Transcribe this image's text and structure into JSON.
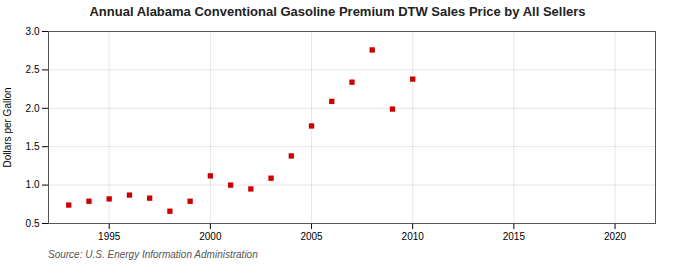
{
  "chart_data": {
    "type": "scatter",
    "title": "Annual Alabama Conventional Gasoline Premium DTW Sales Price by All Sellers",
    "ylabel": "Dollars per Gallon",
    "annotation": "Source: U.S. Energy Information Administration",
    "x": [
      1993,
      1994,
      1995,
      1996,
      1997,
      1998,
      1999,
      2000,
      2001,
      2002,
      2003,
      2004,
      2005,
      2006,
      2007,
      2008,
      2009,
      2010
    ],
    "values": [
      0.74,
      0.79,
      0.82,
      0.87,
      0.83,
      0.66,
      0.79,
      1.12,
      1.0,
      0.95,
      1.09,
      1.38,
      1.77,
      2.09,
      2.34,
      2.76,
      1.99,
      2.38
    ],
    "color": "#cc0000",
    "marker": "square",
    "xlim": [
      1992,
      2022
    ],
    "ylim": [
      0.5,
      3.0
    ],
    "xticks": [
      1995,
      2000,
      2005,
      2010,
      2015,
      2020
    ],
    "yticks": [
      0.5,
      {
        "value": 1.0,
        "label": "1.0"
      },
      1.5,
      {
        "value": 2.0,
        "label": "2.0"
      },
      2.5,
      {
        "value": 3.0,
        "label": "3.0"
      }
    ],
    "grid": true
  }
}
